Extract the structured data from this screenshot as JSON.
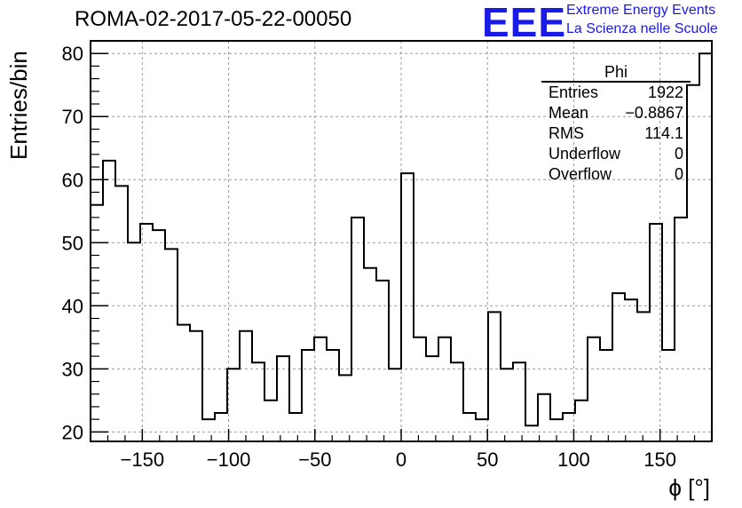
{
  "header": {
    "title": "ROMA-02-2017-05-22-00050",
    "logo_mark": "EEE",
    "logo_line1": "Extreme Energy Events",
    "logo_line2": "La Scienza nelle Scuole"
  },
  "stats_box": {
    "name": "Phi",
    "rows": [
      {
        "label": "Entries",
        "value": "1922"
      },
      {
        "label": "Mean",
        "value": "−0.8867"
      },
      {
        "label": "RMS",
        "value": "114.1"
      },
      {
        "label": "Underflow",
        "value": "0"
      },
      {
        "label": "Overflow",
        "value": "0"
      }
    ]
  },
  "colors": {
    "logo": "#1a1ae6",
    "line": "#000000",
    "grid": "#9a9a9a"
  },
  "chart_data": {
    "type": "histogram",
    "title": "ROMA-02-2017-05-22-00050",
    "xlabel": "ϕ [°]",
    "ylabel": "Entries/bin",
    "xlim": [
      -180,
      180
    ],
    "ylim": [
      18.5,
      82
    ],
    "grid": true,
    "bin_width": 7.2,
    "x_ticks": [
      -150,
      -100,
      -50,
      0,
      50,
      100,
      150
    ],
    "x_tick_labels": [
      "−150",
      "−100",
      "−50",
      "0",
      "50",
      "100",
      "150"
    ],
    "y_ticks": [
      20,
      30,
      40,
      50,
      60,
      70,
      80
    ],
    "y_tick_labels": [
      "20",
      "30",
      "40",
      "50",
      "60",
      "70",
      "80"
    ],
    "values": [
      56,
      63,
      59,
      50,
      53,
      52,
      49,
      37,
      36,
      22,
      23,
      30,
      36,
      31,
      25,
      32,
      23,
      33,
      35,
      33,
      29,
      54,
      46,
      44,
      30,
      61,
      35,
      32,
      35,
      31,
      23,
      22,
      39,
      30,
      31,
      21,
      26,
      22,
      23,
      25,
      35,
      33,
      42,
      41,
      39,
      53,
      33,
      54,
      75,
      80
    ]
  }
}
